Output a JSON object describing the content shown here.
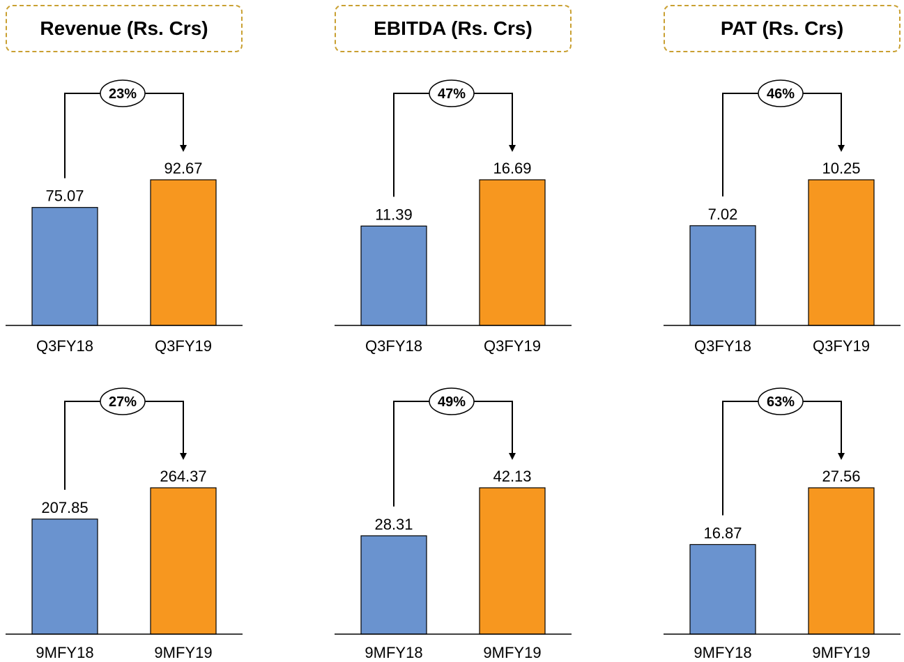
{
  "headers": [
    "Revenue (Rs. Crs)",
    "EBITDA (Rs. Crs)",
    "PAT (Rs. Crs)"
  ],
  "colors": {
    "prior": "#6a93cf",
    "current": "#f7971f",
    "header_border": "#c9a032"
  },
  "chart_data": [
    {
      "type": "bar",
      "metric": "Revenue (Rs. Crs)",
      "categories": [
        "Q3FY18",
        "Q3FY19"
      ],
      "values": [
        75.07,
        92.67
      ],
      "value_labels": [
        "75.07",
        "92.67"
      ],
      "growth": "23%"
    },
    {
      "type": "bar",
      "metric": "EBITDA (Rs. Crs)",
      "categories": [
        "Q3FY18",
        "Q3FY19"
      ],
      "values": [
        11.39,
        16.69
      ],
      "value_labels": [
        "11.39",
        "16.69"
      ],
      "growth": "47%"
    },
    {
      "type": "bar",
      "metric": "PAT (Rs. Crs)",
      "categories": [
        "Q3FY18",
        "Q3FY19"
      ],
      "values": [
        7.02,
        10.25
      ],
      "value_labels": [
        "7.02",
        "10.25"
      ],
      "growth": "46%"
    },
    {
      "type": "bar",
      "metric": "Revenue (Rs. Crs)",
      "categories": [
        "9MFY18",
        "9MFY19"
      ],
      "values": [
        207.85,
        264.37
      ],
      "value_labels": [
        "207.85",
        "264.37"
      ],
      "growth": "27%"
    },
    {
      "type": "bar",
      "metric": "EBITDA (Rs. Crs)",
      "categories": [
        "9MFY18",
        "9MFY19"
      ],
      "values": [
        28.31,
        42.13
      ],
      "value_labels": [
        "28.31",
        "42.13"
      ],
      "growth": "49%"
    },
    {
      "type": "bar",
      "metric": "PAT (Rs. Crs)",
      "categories": [
        "9MFY18",
        "9MFY19"
      ],
      "values": [
        16.87,
        27.56
      ],
      "value_labels": [
        "16.87",
        "27.56"
      ],
      "growth": "63%"
    }
  ]
}
